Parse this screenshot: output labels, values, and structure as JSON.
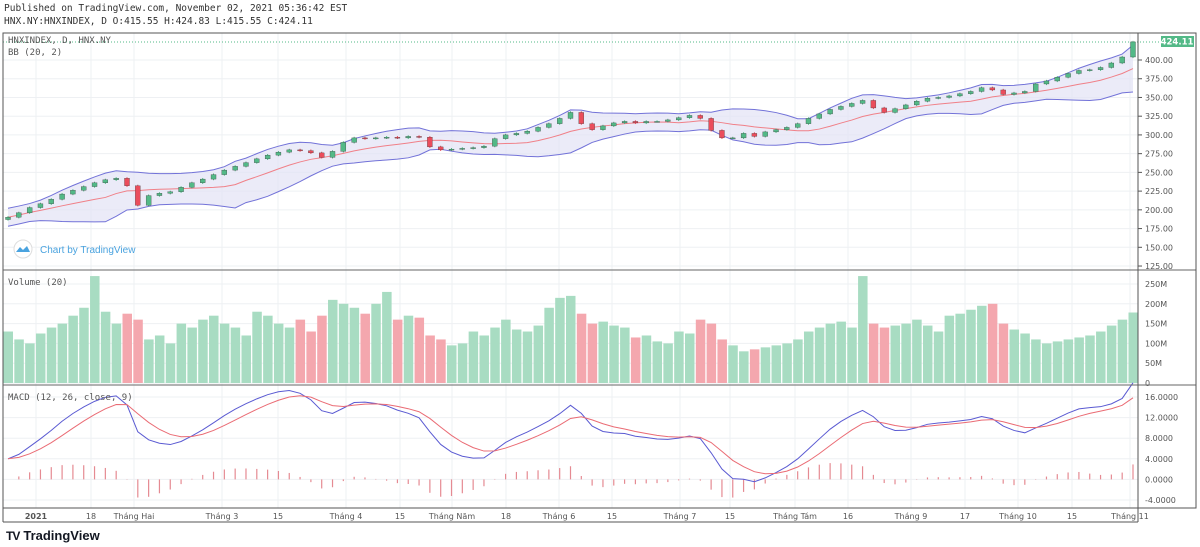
{
  "header": {
    "published": "Published on TradingView.com, November 02, 2021 05:36:42 EST",
    "ohlc": "HNX.NY:HNXINDEX, D O:415.55 H:424.83 L:415.55 C:424.11"
  },
  "panes": {
    "price_legend": "HNXINDEX, D, HNX.NY",
    "bb_legend": "BB (20, 2)",
    "volume_legend": "Volume (20)",
    "macd_legend": "MACD (12, 26, close, 9)",
    "watermark": "Chart by TradingView",
    "last_price_label": "424.11"
  },
  "footer": {
    "brand": "TradingView"
  },
  "colors": {
    "up": "#53b987",
    "down": "#eb4d5c",
    "vol_up": "#a8dcc2",
    "vol_down": "#f4a7ae",
    "bb_band": "#7272d8",
    "bb_basis": "#f08088",
    "bb_fill": "#e3e3f5",
    "macd": "#5a5ad2",
    "signal": "#ea6b74",
    "hist": "#e58a92",
    "last_price": "#53b987"
  },
  "chart_data": {
    "type": "candlestick",
    "price_axis": {
      "ticks": [
        "400.00",
        "375.00",
        "350.00",
        "325.00",
        "300.00",
        "275.00",
        "250.00",
        "225.00",
        "200.00",
        "175.00",
        "150.00",
        "125.00"
      ],
      "range": [
        125,
        425
      ]
    },
    "volume_axis": {
      "ticks": [
        "250M",
        "200M",
        "150M",
        "100M",
        "50M",
        "0"
      ],
      "range": [
        0,
        250
      ]
    },
    "macd_axis": {
      "ticks": [
        "16.0000",
        "12.0000",
        "8.0000",
        "4.0000",
        "0.0000",
        "-4.0000"
      ],
      "range": [
        -4,
        16
      ]
    },
    "time_axis": [
      "2021",
      "18",
      "Tháng Hai",
      "Tháng 3",
      "15",
      "Tháng 4",
      "15",
      "Tháng Năm",
      "18",
      "Tháng 6",
      "15",
      "Tháng 7",
      "15",
      "Tháng Tám",
      "16",
      "Tháng 9",
      "17",
      "Tháng 10",
      "15",
      "Tháng 11"
    ],
    "close": [
      190,
      196,
      203,
      208,
      214,
      221,
      226,
      231,
      236,
      240,
      242,
      232,
      206,
      219,
      222,
      224,
      230,
      236,
      241,
      247,
      253,
      258,
      263,
      268,
      273,
      277,
      280,
      279,
      276,
      270,
      278,
      290,
      296,
      295,
      296,
      297,
      296,
      298,
      297,
      284,
      280,
      281,
      282,
      283,
      285,
      295,
      300,
      302,
      305,
      310,
      315,
      322,
      330,
      315,
      307,
      312,
      316,
      318,
      316,
      318,
      318,
      320,
      323,
      326,
      322,
      306,
      296,
      296,
      302,
      298,
      304,
      307,
      310,
      315,
      322,
      328,
      334,
      338,
      342,
      346,
      336,
      330,
      335,
      340,
      345,
      349,
      350,
      352,
      355,
      358,
      363,
      360,
      354,
      356,
      358,
      368,
      372,
      377,
      382,
      386,
      387,
      390,
      396,
      404,
      424.11
    ],
    "volume_m": [
      130,
      110,
      100,
      125,
      140,
      150,
      170,
      190,
      270,
      180,
      150,
      175,
      160,
      110,
      120,
      100,
      150,
      140,
      160,
      170,
      150,
      140,
      120,
      180,
      170,
      150,
      140,
      160,
      130,
      170,
      210,
      200,
      190,
      175,
      200,
      230,
      160,
      170,
      165,
      120,
      110,
      95,
      100,
      130,
      120,
      140,
      160,
      135,
      130,
      145,
      190,
      215,
      220,
      175,
      150,
      155,
      145,
      140,
      115,
      120,
      105,
      100,
      130,
      125,
      160,
      150,
      110,
      95,
      80,
      85,
      90,
      95,
      100,
      110,
      130,
      140,
      150,
      155,
      140,
      270,
      150,
      140,
      145,
      150,
      160,
      145,
      130,
      170,
      175,
      185,
      195,
      200,
      150,
      135,
      125,
      110,
      100,
      105,
      110,
      115,
      120,
      130,
      145,
      160,
      178
    ]
  }
}
